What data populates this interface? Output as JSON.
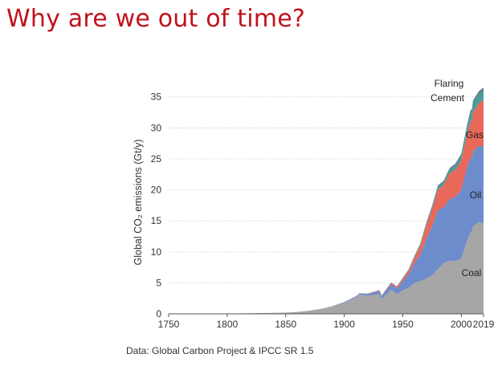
{
  "slide": {
    "title": "Why are we out of time?",
    "source": "Data: Global Carbon Project & IPCC SR 1.5"
  },
  "chart_data": {
    "type": "area",
    "stacked": true,
    "ylabel": "Global CO₂ emissions (Gt/y)",
    "xlabel": "",
    "xlim": [
      1750,
      2019
    ],
    "ylim": [
      0,
      36
    ],
    "grid": true,
    "x_ticks": [
      1750,
      1800,
      1850,
      1900,
      1950,
      2000,
      2019
    ],
    "y_ticks": [
      0,
      5,
      10,
      15,
      20,
      25,
      30,
      35
    ],
    "x_tick_labels": [
      "1750",
      "1800",
      "1850",
      "1900",
      "1950",
      "2000",
      "2019"
    ],
    "y_tick_labels": [
      "0",
      "5",
      "10",
      "15",
      "20",
      "25",
      "30",
      "35"
    ],
    "x": [
      1750,
      1800,
      1850,
      1860,
      1870,
      1880,
      1890,
      1900,
      1910,
      1913,
      1920,
      1930,
      1932,
      1940,
      1945,
      1950,
      1955,
      1960,
      1965,
      1970,
      1975,
      1980,
      1985,
      1990,
      1995,
      2000,
      2005,
      2008,
      2009,
      2010,
      2015,
      2019
    ],
    "series": [
      {
        "name": "Coal",
        "color": "#a6a6a6",
        "values": [
          0.01,
          0.03,
          0.2,
          0.3,
          0.5,
          0.8,
          1.2,
          1.8,
          2.6,
          3.1,
          2.9,
          3.2,
          2.4,
          3.9,
          3.2,
          3.8,
          4.2,
          5.0,
          5.3,
          5.7,
          6.2,
          7.2,
          8.2,
          8.6,
          8.5,
          8.9,
          11.9,
          13.2,
          13.3,
          14.1,
          14.8,
          14.6
        ]
      },
      {
        "name": "Oil",
        "color": "#6d8ccc",
        "values": [
          0,
          0,
          0,
          0,
          0,
          0,
          0.05,
          0.1,
          0.2,
          0.2,
          0.3,
          0.5,
          0.45,
          0.9,
          0.9,
          1.5,
          2.2,
          3.2,
          4.3,
          6.3,
          7.9,
          9.5,
          9.0,
          9.9,
          10.4,
          11.1,
          11.8,
          12.0,
          11.9,
          12.1,
          12.3,
          12.4
        ]
      },
      {
        "name": "Gas",
        "color": "#e8685a",
        "values": [
          0,
          0,
          0,
          0,
          0,
          0,
          0,
          0.01,
          0.02,
          0.02,
          0.05,
          0.1,
          0.1,
          0.2,
          0.3,
          0.4,
          0.6,
          0.9,
          1.4,
          2.2,
          2.7,
          3.3,
          3.6,
          4.2,
          4.4,
          4.7,
          5.4,
          6.0,
          5.9,
          6.3,
          6.9,
          7.5
        ]
      },
      {
        "name": "Cement",
        "color": "#4a9b9b",
        "values": [
          0,
          0,
          0,
          0,
          0,
          0,
          0,
          0.01,
          0.02,
          0.02,
          0.03,
          0.04,
          0.04,
          0.06,
          0.05,
          0.1,
          0.15,
          0.2,
          0.25,
          0.3,
          0.4,
          0.5,
          0.55,
          0.6,
          0.75,
          0.85,
          1.2,
          1.45,
          1.5,
          1.6,
          1.55,
          1.6
        ]
      },
      {
        "name": "Flaring",
        "color": "#5f6f78",
        "values": [
          0,
          0,
          0,
          0,
          0,
          0,
          0,
          0,
          0,
          0,
          0,
          0,
          0,
          0,
          0,
          0.02,
          0.04,
          0.08,
          0.1,
          0.15,
          0.2,
          0.2,
          0.15,
          0.2,
          0.2,
          0.25,
          0.25,
          0.3,
          0.3,
          0.3,
          0.35,
          0.4
        ]
      }
    ],
    "annotations": [
      "Flaring",
      "Cement",
      "Gas",
      "Oil",
      "Coal"
    ]
  }
}
